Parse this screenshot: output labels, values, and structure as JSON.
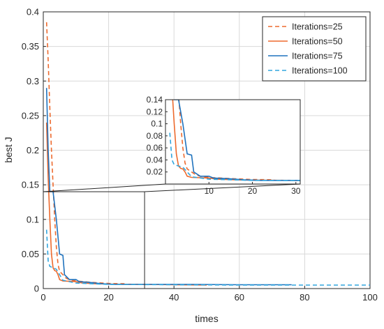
{
  "chart_data": [
    {
      "type": "line",
      "title": "",
      "xlabel": "times",
      "ylabel": "best J",
      "xlim": [
        0,
        100
      ],
      "ylim": [
        0,
        0.4
      ],
      "x_ticks": [
        0,
        20,
        40,
        60,
        80,
        100
      ],
      "y_ticks": [
        0,
        0.05,
        0.1,
        0.15,
        0.2,
        0.25,
        0.3,
        0.35,
        0.4
      ],
      "grid": true,
      "legend_position": "top-right",
      "series": [
        {
          "name": "Iterations=25",
          "color": "#ED6A2E",
          "dash": "dashed",
          "points": [
            [
              1,
              0.385
            ],
            [
              1.5,
              0.33
            ],
            [
              2,
              0.26
            ],
            [
              2.5,
              0.2
            ],
            [
              3,
              0.15
            ],
            [
              3.5,
              0.1
            ],
            [
              4,
              0.06
            ],
            [
              4.5,
              0.035
            ],
            [
              5,
              0.025
            ],
            [
              6,
              0.02
            ],
            [
              7,
              0.015
            ],
            [
              8,
              0.013
            ],
            [
              10,
              0.011
            ],
            [
              15,
              0.009
            ],
            [
              20,
              0.0075
            ],
            [
              25,
              0.007
            ]
          ]
        },
        {
          "name": "Iterations=50",
          "color": "#ED6A2E",
          "dash": "solid",
          "points": [
            [
              1,
              0.24
            ],
            [
              1.5,
              0.16
            ],
            [
              2,
              0.1
            ],
            [
              2.5,
              0.05
            ],
            [
              3,
              0.03
            ],
            [
              3.5,
              0.026
            ],
            [
              4,
              0.025
            ],
            [
              4.5,
              0.02
            ],
            [
              5,
              0.013
            ],
            [
              6,
              0.011
            ],
            [
              10,
              0.01
            ],
            [
              12,
              0.008
            ],
            [
              16,
              0.007
            ],
            [
              20,
              0.0065
            ],
            [
              30,
              0.006
            ],
            [
              40,
              0.0055
            ],
            [
              50,
              0.005
            ]
          ]
        },
        {
          "name": "Iterations=75",
          "color": "#1F72BD",
          "dash": "solid",
          "points": [
            [
              1,
              0.29
            ],
            [
              1.5,
              0.2
            ],
            [
              2,
              0.14
            ],
            [
              3,
              0.14
            ],
            [
              4,
              0.1
            ],
            [
              5,
              0.05
            ],
            [
              6,
              0.048
            ],
            [
              6.5,
              0.02
            ],
            [
              8,
              0.013
            ],
            [
              10,
              0.013
            ],
            [
              11,
              0.01
            ],
            [
              14,
              0.009
            ],
            [
              18,
              0.007
            ],
            [
              22,
              0.006
            ],
            [
              30,
              0.006
            ],
            [
              45,
              0.006
            ],
            [
              60,
              0.0055
            ],
            [
              76,
              0.0055
            ]
          ]
        },
        {
          "name": "Iterations=100",
          "color": "#31A5DE",
          "dash": "dashed",
          "points": [
            [
              1,
              0.085
            ],
            [
              1.5,
              0.04
            ],
            [
              2,
              0.032
            ],
            [
              3,
              0.03
            ],
            [
              4,
              0.028
            ],
            [
              5,
              0.02
            ],
            [
              6,
              0.012
            ],
            [
              10,
              0.008
            ],
            [
              15,
              0.007
            ],
            [
              20,
              0.006
            ],
            [
              40,
              0.0055
            ],
            [
              60,
              0.005
            ],
            [
              80,
              0.005
            ],
            [
              100,
              0.005
            ]
          ]
        }
      ]
    },
    {
      "type": "line",
      "title": "",
      "xlabel": "",
      "ylabel": "",
      "xlim": [
        0,
        31
      ],
      "ylim": [
        0,
        0.14
      ],
      "x_ticks": [
        10,
        20,
        30
      ],
      "y_ticks": [
        0.02,
        0.04,
        0.06,
        0.08,
        0.1,
        0.12,
        0.14
      ],
      "grid": false,
      "note_inset": "zoomed view of x 0–31, y 0–0.14",
      "series_ref": "same as main chart"
    }
  ]
}
